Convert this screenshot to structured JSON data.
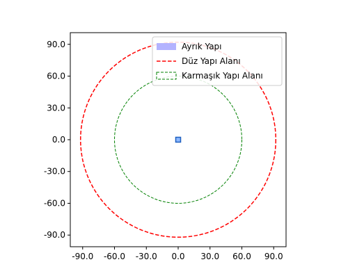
{
  "chart_data": {
    "type": "scatter",
    "title": "",
    "xlabel": "",
    "ylabel": "",
    "xlim": [
      -101,
      101
    ],
    "ylim": [
      -101,
      101
    ],
    "aspect": "equal",
    "grid": false,
    "x_ticks": [
      -90,
      -60,
      -30,
      0,
      30,
      60,
      90
    ],
    "y_ticks": [
      -90,
      -60,
      -30,
      0,
      30,
      60,
      90
    ],
    "tick_format_decimals": 1,
    "legend": {
      "placement": "top-right",
      "entries": [
        {
          "label": "Ayrık Yapı",
          "style": "patch",
          "color": "#b3b3ff"
        },
        {
          "label": "Düz Yapı Alanı",
          "style": "dashed-line",
          "color": "#ff0000"
        },
        {
          "label": "Karmaşık Yapı Alanı",
          "style": "dashed-patch",
          "color": "#008000"
        }
      ]
    },
    "series": [
      {
        "name": "Ayrık Yapı",
        "kind": "square",
        "center": [
          0,
          0
        ],
        "half_size": 2.3,
        "fill": "#8cb8ff",
        "edge": "#1f5fbf"
      },
      {
        "name": "Düz Yapı Alanı",
        "kind": "circle",
        "center": [
          0,
          0
        ],
        "radius": 92,
        "color": "#ff0000"
      },
      {
        "name": "Karmaşık Yapı Alanı",
        "kind": "circle",
        "center": [
          0,
          0
        ],
        "radius": 60,
        "color": "#008000"
      }
    ]
  }
}
